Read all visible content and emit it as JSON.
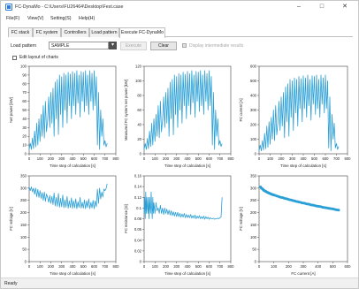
{
  "window": {
    "title": "FC-DynaMo - C:\\Users\\FU26464\\Desktop\\Fest.case",
    "minimize": "–",
    "maximize": "□",
    "close": "✕"
  },
  "menu": [
    "File(F)",
    "View(V)",
    "Setting(S)",
    "Help(H)"
  ],
  "tabs": [
    "FC stack",
    "FC system",
    "Controllers",
    "Load pattern",
    "Execute FC-DynaMo"
  ],
  "toolbar": {
    "load_pattern_label": "Load pattern",
    "load_pattern_value": "SAMPLE",
    "dropdown_arrow": "▾",
    "execute_label": "Execute",
    "clear_label": "Clear",
    "display_intermediate_label": "Display intermediate results",
    "display_intermediate_checked": false
  },
  "edit_layout": {
    "label": "Edit layout of charts",
    "checked": false
  },
  "status": "Ready",
  "colors": {
    "series": "#2a9fd6"
  },
  "chart_data": [
    {
      "type": "line",
      "ylabel": "Net power [kW]",
      "xlabel": "Time step of calculation [s]",
      "ylim": [
        0,
        100
      ],
      "yticks": [
        0,
        10,
        20,
        30,
        40,
        50,
        60,
        70,
        80,
        90,
        100
      ],
      "xlim": [
        0,
        800
      ],
      "xticks": [
        0,
        100,
        200,
        300,
        400,
        500,
        600,
        700,
        800
      ],
      "series": [
        {
          "x": [
            0,
            10,
            20,
            30,
            40,
            50,
            60,
            70,
            80,
            90,
            100,
            110,
            120,
            130,
            140,
            150,
            160,
            170,
            180,
            190,
            200,
            210,
            220,
            230,
            240,
            250,
            260,
            270,
            280,
            290,
            300,
            310,
            320,
            330,
            340,
            350,
            360,
            370,
            380,
            390,
            400,
            410,
            420,
            430,
            440,
            450,
            460,
            470,
            480,
            490,
            500,
            510,
            520,
            530,
            540,
            550,
            560,
            570,
            580,
            590,
            600,
            610,
            620,
            630,
            640,
            650,
            660,
            670,
            680,
            690,
            700,
            710,
            720
          ],
          "y": [
            5,
            12,
            5,
            18,
            6,
            26,
            8,
            35,
            10,
            40,
            14,
            45,
            20,
            55,
            18,
            60,
            25,
            38,
            65,
            30,
            70,
            35,
            75,
            20,
            82,
            40,
            85,
            22,
            90,
            45,
            88,
            30,
            92,
            50,
            90,
            35,
            93,
            55,
            91,
            40,
            94,
            55,
            92,
            45,
            95,
            58,
            90,
            42,
            94,
            60,
            93,
            48,
            95,
            55,
            90,
            45,
            95,
            60,
            92,
            50,
            95,
            55,
            88,
            10,
            70,
            5,
            50,
            20,
            40,
            10,
            15,
            8,
            12
          ]
        }
      ]
    },
    {
      "type": "line",
      "ylabel": "Measured FC system net power [kW]",
      "xlabel": "Time step of calculation [s]",
      "ylim": [
        0,
        120
      ],
      "yticks": [
        0,
        20,
        40,
        60,
        80,
        100,
        120
      ],
      "xlim": [
        0,
        800
      ],
      "xticks": [
        0,
        100,
        200,
        300,
        400,
        500,
        600,
        700,
        800
      ],
      "series": [
        {
          "x": [
            0,
            10,
            20,
            30,
            40,
            50,
            60,
            70,
            80,
            90,
            100,
            110,
            120,
            130,
            140,
            150,
            160,
            170,
            180,
            190,
            200,
            210,
            220,
            230,
            240,
            250,
            260,
            270,
            280,
            290,
            300,
            310,
            320,
            330,
            340,
            350,
            360,
            370,
            380,
            390,
            400,
            410,
            420,
            430,
            440,
            450,
            460,
            470,
            480,
            490,
            500,
            510,
            520,
            530,
            540,
            550,
            560,
            570,
            580,
            590,
            600,
            610,
            620,
            630,
            640,
            650,
            660,
            670,
            680,
            690,
            700,
            710,
            720
          ],
          "y": [
            6,
            14,
            6,
            21,
            7,
            31,
            10,
            42,
            12,
            48,
            17,
            54,
            24,
            66,
            22,
            72,
            30,
            46,
            78,
            36,
            84,
            42,
            90,
            24,
            98,
            48,
            102,
            26,
            108,
            54,
            106,
            36,
            110,
            60,
            108,
            42,
            112,
            66,
            109,
            48,
            113,
            66,
            110,
            54,
            114,
            70,
            108,
            50,
            113,
            72,
            112,
            58,
            114,
            66,
            108,
            54,
            114,
            72,
            110,
            60,
            114,
            66,
            106,
            12,
            84,
            6,
            60,
            24,
            48,
            12,
            18,
            10,
            14
          ]
        }
      ]
    },
    {
      "type": "line",
      "ylabel": "FC current [A]",
      "xlabel": "Time step of calculation [s]",
      "ylim": [
        0,
        600
      ],
      "yticks": [
        0,
        100,
        200,
        300,
        400,
        500,
        600
      ],
      "xlim": [
        0,
        800
      ],
      "xticks": [
        0,
        100,
        200,
        300,
        400,
        500,
        600,
        700,
        800
      ],
      "series": [
        {
          "x": [
            0,
            10,
            20,
            30,
            40,
            50,
            60,
            70,
            80,
            90,
            100,
            110,
            120,
            130,
            140,
            150,
            160,
            170,
            180,
            190,
            200,
            210,
            220,
            230,
            240,
            250,
            260,
            270,
            280,
            290,
            300,
            310,
            320,
            330,
            340,
            350,
            360,
            370,
            380,
            390,
            400,
            410,
            420,
            430,
            440,
            450,
            460,
            470,
            480,
            490,
            500,
            510,
            520,
            530,
            540,
            550,
            560,
            570,
            580,
            590,
            600,
            610,
            620,
            630,
            640,
            650,
            660,
            670,
            680,
            690,
            700,
            710,
            720
          ],
          "y": [
            20,
            60,
            20,
            90,
            25,
            140,
            35,
            190,
            45,
            220,
            65,
            250,
            100,
            300,
            90,
            330,
            130,
            210,
            360,
            160,
            390,
            190,
            420,
            110,
            460,
            220,
            480,
            120,
            510,
            250,
            500,
            160,
            520,
            280,
            510,
            190,
            530,
            310,
            515,
            220,
            535,
            310,
            520,
            250,
            540,
            330,
            510,
            230,
            535,
            340,
            530,
            270,
            540,
            310,
            510,
            250,
            540,
            340,
            520,
            280,
            540,
            310,
            500,
            40,
            390,
            20,
            270,
            100,
            210,
            40,
            70,
            30,
            50
          ]
        }
      ]
    },
    {
      "type": "line",
      "ylabel": "FC voltage [V]",
      "xlabel": "Time step of calculation [s]",
      "ylim": [
        0,
        350
      ],
      "yticks": [
        0,
        50,
        100,
        150,
        200,
        250,
        300,
        350
      ],
      "xlim": [
        0,
        800
      ],
      "xticks": [
        0,
        100,
        200,
        300,
        400,
        500,
        600,
        700,
        800
      ],
      "series": [
        {
          "x": [
            0,
            10,
            20,
            30,
            40,
            50,
            60,
            70,
            80,
            90,
            100,
            110,
            120,
            130,
            140,
            150,
            160,
            170,
            180,
            190,
            200,
            210,
            220,
            230,
            240,
            250,
            260,
            270,
            280,
            290,
            300,
            310,
            320,
            330,
            340,
            350,
            360,
            370,
            380,
            390,
            400,
            410,
            420,
            430,
            440,
            450,
            460,
            470,
            480,
            490,
            500,
            510,
            520,
            530,
            540,
            550,
            560,
            570,
            580,
            590,
            600,
            610,
            620,
            630,
            640,
            650,
            660,
            670,
            680,
            690,
            700,
            710,
            720
          ],
          "y": [
            305,
            290,
            305,
            285,
            300,
            275,
            300,
            265,
            295,
            262,
            290,
            258,
            282,
            250,
            284,
            246,
            276,
            262,
            242,
            270,
            238,
            266,
            233,
            280,
            228,
            262,
            225,
            278,
            222,
            258,
            224,
            272,
            220,
            252,
            222,
            266,
            218,
            248,
            221,
            260,
            217,
            248,
            220,
            256,
            216,
            244,
            221,
            262,
            218,
            242,
            218,
            252,
            216,
            248,
            221,
            256,
            216,
            242,
            219,
            250,
            216,
            248,
            224,
            296,
            238,
            300,
            256,
            284,
            264,
            296,
            290,
            298,
            318
          ]
        }
      ]
    },
    {
      "type": "line",
      "ylabel": "FC resistance [Ω]",
      "xlabel": "Time step of calculation [s]",
      "ylim": [
        0,
        0.16
      ],
      "yticks": [
        0,
        0.02,
        0.04,
        0.06,
        0.08,
        0.1,
        0.12,
        0.14,
        0.16
      ],
      "xlim": [
        0,
        800
      ],
      "xticks": [
        0,
        100,
        200,
        300,
        400,
        500,
        600,
        700,
        800
      ],
      "series": [
        {
          "x": [
            0,
            5,
            10,
            15,
            20,
            25,
            30,
            35,
            40,
            45,
            50,
            55,
            60,
            65,
            70,
            75,
            80,
            85,
            90,
            95,
            100,
            110,
            120,
            130,
            140,
            150,
            160,
            170,
            180,
            190,
            200,
            210,
            220,
            230,
            240,
            250,
            260,
            270,
            280,
            290,
            300,
            310,
            320,
            330,
            340,
            350,
            360,
            370,
            380,
            390,
            400,
            410,
            420,
            430,
            440,
            450,
            460,
            470,
            480,
            490,
            500,
            510,
            520,
            530,
            540,
            550,
            560,
            570,
            580,
            590,
            600,
            610,
            620,
            630,
            640,
            650,
            660,
            670,
            680,
            690,
            700,
            710,
            720
          ],
          "y": [
            0.09,
            0.12,
            0.08,
            0.13,
            0.09,
            0.12,
            0.1,
            0.09,
            0.12,
            0.08,
            0.12,
            0.1,
            0.09,
            0.13,
            0.1,
            0.08,
            0.12,
            0.09,
            0.11,
            0.1,
            0.09,
            0.11,
            0.095,
            0.1,
            0.09,
            0.105,
            0.09,
            0.1,
            0.088,
            0.1,
            0.09,
            0.098,
            0.088,
            0.096,
            0.087,
            0.095,
            0.086,
            0.093,
            0.085,
            0.092,
            0.084,
            0.092,
            0.084,
            0.09,
            0.083,
            0.089,
            0.083,
            0.09,
            0.082,
            0.088,
            0.082,
            0.087,
            0.082,
            0.088,
            0.081,
            0.086,
            0.081,
            0.087,
            0.08,
            0.085,
            0.081,
            0.086,
            0.08,
            0.084,
            0.08,
            0.085,
            0.079,
            0.084,
            0.08,
            0.083,
            0.079,
            0.082,
            0.08,
            0.08,
            0.081,
            0.079,
            0.08,
            0.08,
            0.081,
            0.08,
            0.082,
            0.083,
            0.12
          ]
        }
      ]
    },
    {
      "type": "scatter",
      "ylabel": "FC voltage [V]",
      "xlabel": "FC current [A]",
      "ylim": [
        0,
        350
      ],
      "yticks": [
        0,
        50,
        100,
        150,
        200,
        250,
        300,
        350
      ],
      "xlim": [
        0,
        600
      ],
      "xticks": [
        0,
        100,
        200,
        300,
        400,
        500,
        600
      ],
      "series": [
        {
          "x": [
            10,
            15,
            20,
            25,
            30,
            35,
            40,
            45,
            50,
            55,
            60,
            65,
            70,
            75,
            80,
            85,
            90,
            95,
            100,
            110,
            120,
            130,
            140,
            150,
            160,
            170,
            180,
            190,
            200,
            210,
            220,
            230,
            240,
            250,
            260,
            270,
            280,
            290,
            300,
            310,
            320,
            330,
            340,
            350,
            360,
            370,
            380,
            390,
            400,
            410,
            420,
            430,
            440,
            450,
            460,
            470,
            480,
            490,
            500,
            510,
            520,
            530,
            540
          ],
          "y": [
            305,
            300,
            298,
            296,
            292,
            290,
            288,
            287,
            285,
            283,
            282,
            280,
            279,
            278,
            276,
            275,
            274,
            273,
            272,
            270,
            268,
            266,
            264,
            262,
            261,
            259,
            257,
            256,
            254,
            252,
            251,
            249,
            248,
            246,
            245,
            243,
            242,
            240,
            239,
            238,
            236,
            235,
            234,
            232,
            231,
            230,
            228,
            227,
            226,
            225,
            224,
            222,
            221,
            220,
            219,
            218,
            217,
            216,
            215,
            214,
            212,
            211,
            210
          ]
        }
      ]
    }
  ]
}
